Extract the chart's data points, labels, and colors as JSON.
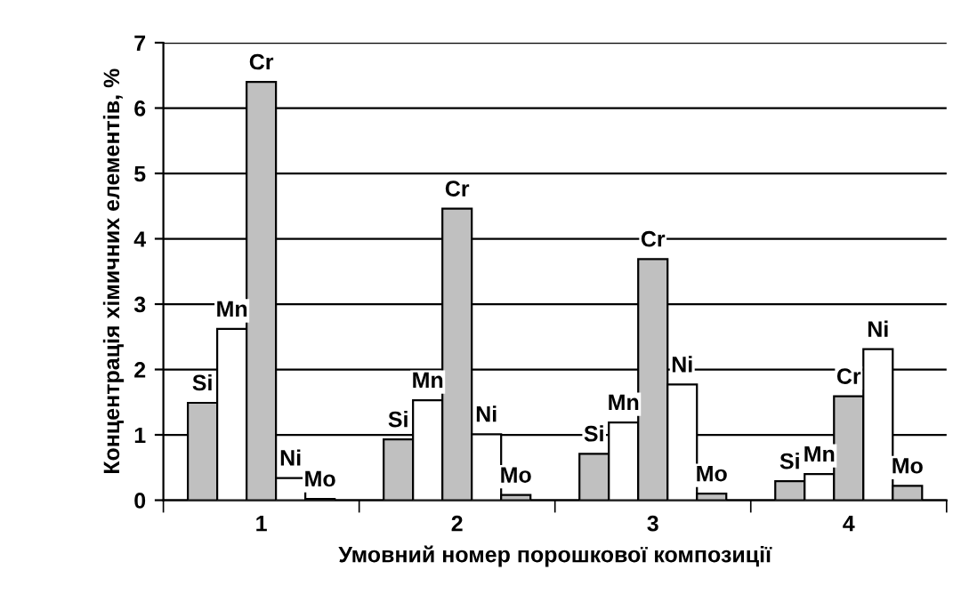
{
  "chart_data": {
    "type": "bar",
    "xlabel": "Умовний номер порошкової композиції",
    "ylabel": "Концентрація хімичних елементів, %",
    "categories": [
      "1",
      "2",
      "3",
      "4"
    ],
    "series": [
      {
        "name": "Si",
        "color": "#c0c0c0",
        "values": [
          1.49,
          0.93,
          0.71,
          0.29
        ]
      },
      {
        "name": "Mn",
        "color": "#ffffff",
        "values": [
          2.62,
          1.53,
          1.19,
          0.4
        ]
      },
      {
        "name": "Cr",
        "color": "#c0c0c0",
        "values": [
          6.4,
          4.46,
          3.69,
          1.59
        ]
      },
      {
        "name": "Ni",
        "color": "#ffffff",
        "values": [
          0.34,
          1.01,
          1.77,
          2.31
        ]
      },
      {
        "name": "Mo",
        "color": "#c0c0c0",
        "values": [
          0.02,
          0.08,
          0.1,
          0.22
        ]
      }
    ],
    "ylim": [
      0,
      7
    ],
    "yticks": [
      0,
      1,
      2,
      3,
      4,
      5,
      6,
      7
    ],
    "grid": "y",
    "legend": false
  }
}
